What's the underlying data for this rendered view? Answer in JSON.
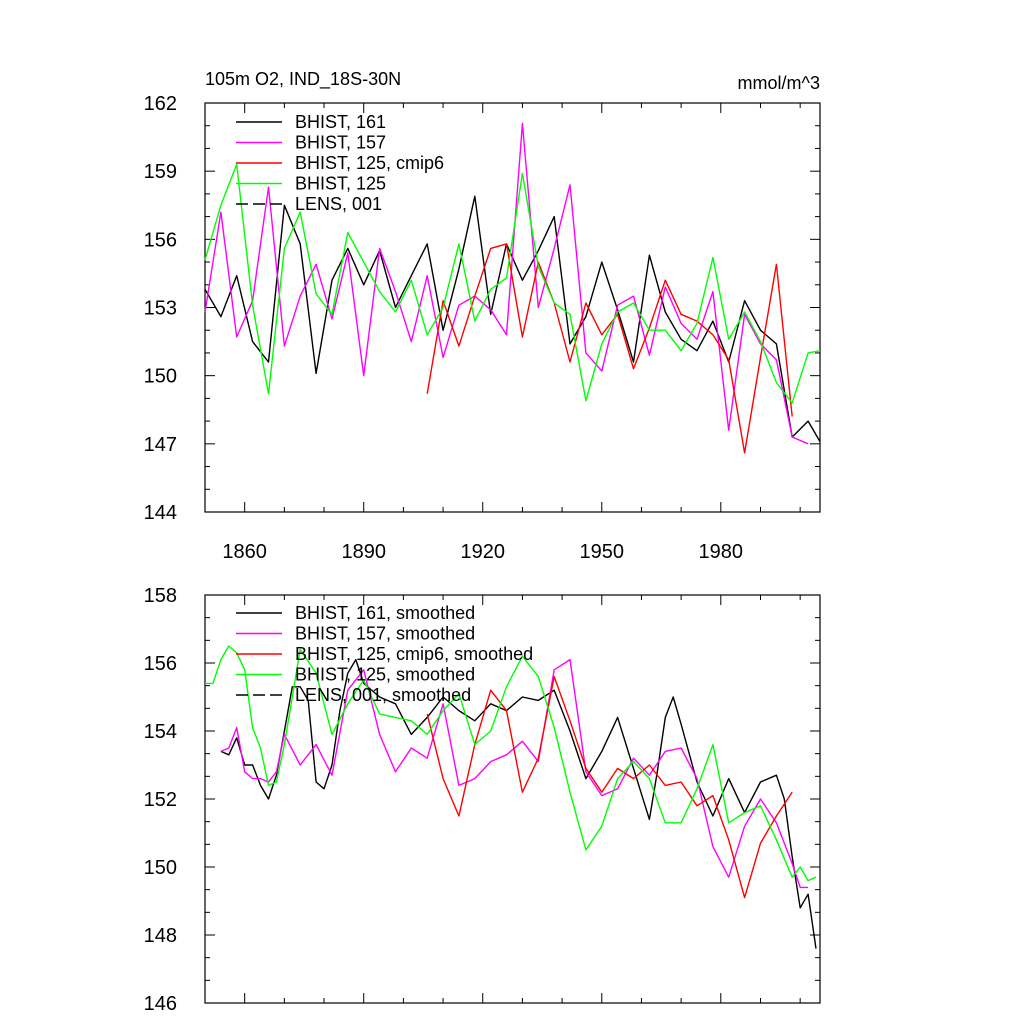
{
  "chart_data": [
    {
      "type": "line",
      "title": "105m O2, IND_18S-30N",
      "units": "mmol/m^3",
      "xlim": [
        1850,
        2005
      ],
      "ylim": [
        144,
        162
      ],
      "yticks": [
        144,
        147,
        150,
        153,
        156,
        159,
        162
      ],
      "xticks": [
        1860,
        1890,
        1920,
        1950,
        1980
      ],
      "xtick_labels": [
        "1860",
        "1890",
        "1920",
        "1950",
        "1980"
      ],
      "ytick_labels": [
        "144",
        "147",
        "150",
        "153",
        "156",
        "159",
        "162"
      ],
      "legend_position": "top-left",
      "legend": [
        {
          "name": "BHIST, 161",
          "color": "#000000",
          "dash": false
        },
        {
          "name": "BHIST, 157",
          "color": "#ff00ff",
          "dash": false
        },
        {
          "name": "BHIST, 125, cmip6",
          "color": "#ff0000",
          "dash": false
        },
        {
          "name": "BHIST, 125",
          "color": "#00ff00",
          "dash": false
        },
        {
          "name": "LENS, 001",
          "color": "#000000",
          "dash": true
        }
      ],
      "series": [
        {
          "name": "BHIST, 161",
          "color": "#000000",
          "x": [
            1850,
            1854,
            1858,
            1862,
            1866,
            1870,
            1874,
            1878,
            1882,
            1886,
            1890,
            1894,
            1898,
            1902,
            1906,
            1910,
            1914,
            1918,
            1922,
            1926,
            1930,
            1934,
            1938,
            1942,
            1946,
            1950,
            1954,
            1958,
            1962,
            1966,
            1970,
            1974,
            1978,
            1982,
            1986,
            1990,
            1994,
            1998,
            2002,
            2005
          ],
          "y": [
            153.8,
            152.6,
            154.4,
            151.5,
            150.6,
            157.5,
            155.8,
            150.1,
            154.2,
            155.6,
            154.0,
            155.5,
            153.0,
            154.4,
            155.8,
            152.0,
            154.7,
            157.9,
            152.7,
            155.8,
            154.2,
            155.5,
            157.0,
            151.4,
            152.6,
            155.0,
            152.9,
            150.6,
            155.3,
            152.8,
            151.6,
            151.1,
            152.4,
            150.6,
            153.3,
            152.0,
            151.4,
            147.3,
            148.0,
            147.1
          ]
        },
        {
          "name": "BHIST, 157",
          "color": "#ff00ff",
          "x": [
            1850,
            1854,
            1858,
            1862,
            1866,
            1870,
            1874,
            1878,
            1882,
            1886,
            1890,
            1894,
            1898,
            1902,
            1906,
            1910,
            1914,
            1918,
            1922,
            1926,
            1930,
            1934,
            1938,
            1942,
            1946,
            1950,
            1954,
            1958,
            1962,
            1966,
            1970,
            1974,
            1978,
            1982,
            1986,
            1990,
            1994,
            1998,
            2002
          ],
          "y": [
            152.8,
            157.2,
            151.7,
            153.3,
            158.3,
            151.3,
            153.5,
            154.9,
            152.5,
            155.4,
            150.0,
            155.6,
            153.7,
            151.5,
            154.4,
            150.8,
            153.1,
            153.5,
            152.9,
            151.8,
            161.1,
            153.0,
            155.6,
            158.4,
            151.0,
            150.2,
            153.1,
            153.5,
            150.9,
            153.9,
            152.3,
            151.6,
            153.7,
            147.6,
            152.7,
            151.4,
            150.7,
            147.3,
            147.0
          ]
        },
        {
          "name": "BHIST, 125, cmip6",
          "color": "#ff0000",
          "x": [
            1906,
            1910,
            1914,
            1918,
            1922,
            1926,
            1930,
            1934,
            1938,
            1942,
            1946,
            1950,
            1954,
            1958,
            1962,
            1966,
            1970,
            1974,
            1978,
            1982,
            1986,
            1990,
            1994,
            1998
          ],
          "y": [
            149.2,
            153.3,
            151.3,
            153.5,
            155.6,
            155.8,
            151.7,
            155.0,
            153.2,
            150.6,
            153.2,
            151.8,
            152.7,
            150.3,
            152.1,
            154.2,
            152.7,
            152.4,
            151.8,
            150.7,
            146.6,
            150.8,
            154.9,
            148.2
          ]
        },
        {
          "name": "BHIST, 125",
          "color": "#00ff00",
          "x": [
            1850,
            1854,
            1858,
            1862,
            1866,
            1870,
            1874,
            1878,
            1882,
            1886,
            1890,
            1894,
            1898,
            1902,
            1906,
            1910,
            1914,
            1918,
            1922,
            1926,
            1930,
            1934,
            1938,
            1942,
            1946,
            1950,
            1954,
            1958,
            1962,
            1966,
            1970,
            1974,
            1978,
            1982,
            1986,
            1990,
            1994,
            1998,
            2002,
            2005
          ],
          "y": [
            155.1,
            157.5,
            159.3,
            153.1,
            149.2,
            155.6,
            157.2,
            153.6,
            152.7,
            156.3,
            155.0,
            153.7,
            152.8,
            154.2,
            151.8,
            153.0,
            155.8,
            152.4,
            153.8,
            154.3,
            158.9,
            154.8,
            153.2,
            152.7,
            148.9,
            151.4,
            152.8,
            153.2,
            152.0,
            152.0,
            151.1,
            152.3,
            155.2,
            151.6,
            152.8,
            151.5,
            149.7,
            148.8,
            151.0,
            151.1
          ]
        }
      ]
    },
    {
      "type": "line",
      "xlim": [
        1850,
        2005
      ],
      "ylim": [
        146,
        158
      ],
      "yticks": [
        146,
        148,
        150,
        152,
        154,
        156,
        158
      ],
      "xticks": [
        1860,
        1890,
        1920,
        1950,
        1980
      ],
      "ytick_labels": [
        "146",
        "148",
        "150",
        "152",
        "154",
        "156",
        "158"
      ],
      "legend_position": "top-left",
      "legend": [
        {
          "name": "BHIST, 161, smoothed",
          "color": "#000000",
          "dash": false
        },
        {
          "name": "BHIST, 157, smoothed",
          "color": "#ff00ff",
          "dash": false
        },
        {
          "name": "BHIST, 125, cmip6, smoothed",
          "color": "#ff0000",
          "dash": false
        },
        {
          "name": "BHIST, 125, smoothed",
          "color": "#00ff00",
          "dash": false
        },
        {
          "name": "LENS, 001, smoothed",
          "color": "#000000",
          "dash": true
        }
      ],
      "series": [
        {
          "name": "BHIST, 161, smoothed",
          "color": "#000000",
          "x": [
            1854,
            1856,
            1858,
            1860,
            1862,
            1864,
            1866,
            1868,
            1870,
            1872,
            1874,
            1876,
            1878,
            1880,
            1882,
            1884,
            1886,
            1888,
            1890,
            1894,
            1898,
            1902,
            1906,
            1910,
            1914,
            1918,
            1922,
            1926,
            1930,
            1934,
            1938,
            1942,
            1946,
            1950,
            1954,
            1958,
            1962,
            1964,
            1966,
            1968,
            1970,
            1974,
            1978,
            1982,
            1986,
            1990,
            1994,
            1996,
            1998,
            2000,
            2002,
            2004
          ],
          "y": [
            153.4,
            153.3,
            153.8,
            153.0,
            153.0,
            152.4,
            152.0,
            152.7,
            154.0,
            155.3,
            155.3,
            154.9,
            152.5,
            152.3,
            153.0,
            154.6,
            155.7,
            156.1,
            155.4,
            155.0,
            154.8,
            153.9,
            154.4,
            155.0,
            154.6,
            154.3,
            154.8,
            154.6,
            155.0,
            154.9,
            155.2,
            154.0,
            152.6,
            153.4,
            154.4,
            152.9,
            151.4,
            152.8,
            154.4,
            155.0,
            154.2,
            152.5,
            151.5,
            152.6,
            151.6,
            152.5,
            152.7,
            152.0,
            150.3,
            148.8,
            149.2,
            147.6
          ]
        },
        {
          "name": "BHIST, 157, smoothed",
          "color": "#ff00ff",
          "x": [
            1854,
            1856,
            1858,
            1860,
            1862,
            1864,
            1866,
            1868,
            1870,
            1874,
            1878,
            1882,
            1886,
            1890,
            1894,
            1898,
            1902,
            1906,
            1910,
            1914,
            1918,
            1922,
            1926,
            1930,
            1934,
            1938,
            1942,
            1946,
            1950,
            1954,
            1958,
            1962,
            1966,
            1970,
            1974,
            1978,
            1982,
            1986,
            1990,
            1994,
            1998,
            2000,
            2002
          ],
          "y": [
            153.4,
            153.5,
            154.1,
            152.8,
            152.6,
            152.6,
            152.5,
            152.8,
            153.9,
            153.0,
            153.6,
            152.7,
            155.2,
            155.8,
            153.9,
            152.8,
            153.5,
            153.2,
            154.8,
            152.4,
            152.6,
            153.1,
            153.3,
            153.7,
            153.1,
            155.8,
            156.1,
            152.8,
            152.1,
            152.3,
            153.2,
            152.7,
            153.4,
            153.5,
            152.6,
            150.6,
            149.7,
            151.2,
            152.0,
            151.3,
            150.1,
            149.4,
            149.4
          ]
        },
        {
          "name": "BHIST, 125, cmip6, smoothed",
          "color": "#ff0000",
          "x": [
            1906,
            1910,
            1914,
            1918,
            1922,
            1926,
            1930,
            1934,
            1938,
            1942,
            1946,
            1950,
            1954,
            1958,
            1962,
            1966,
            1970,
            1974,
            1978,
            1982,
            1986,
            1990,
            1994,
            1998
          ],
          "y": [
            154.5,
            152.6,
            151.5,
            153.6,
            155.2,
            154.6,
            152.2,
            153.2,
            155.6,
            154.3,
            152.9,
            152.2,
            152.9,
            152.6,
            153.0,
            152.4,
            152.5,
            151.8,
            152.1,
            150.8,
            149.1,
            150.7,
            151.5,
            152.2
          ]
        },
        {
          "name": "BHIST, 125, smoothed",
          "color": "#00ff00",
          "x": [
            1850,
            1852,
            1854,
            1856,
            1858,
            1860,
            1862,
            1864,
            1866,
            1868,
            1870,
            1874,
            1878,
            1882,
            1886,
            1890,
            1894,
            1898,
            1902,
            1906,
            1910,
            1914,
            1918,
            1922,
            1926,
            1930,
            1934,
            1938,
            1942,
            1946,
            1950,
            1954,
            1958,
            1962,
            1966,
            1970,
            1974,
            1978,
            1982,
            1986,
            1990,
            1994,
            1998,
            2000,
            2002,
            2004
          ],
          "y": [
            155.4,
            155.4,
            156.1,
            156.5,
            156.3,
            155.8,
            154.1,
            153.5,
            152.4,
            152.5,
            153.6,
            156.4,
            155.7,
            153.9,
            154.8,
            155.5,
            154.5,
            154.4,
            154.3,
            153.9,
            154.6,
            155.1,
            153.6,
            154.0,
            155.3,
            156.2,
            155.6,
            154.1,
            152.2,
            150.5,
            151.2,
            152.6,
            153.1,
            152.6,
            151.3,
            151.3,
            152.3,
            153.6,
            151.3,
            151.6,
            151.8,
            150.8,
            149.7,
            150.0,
            149.6,
            149.7
          ]
        }
      ]
    }
  ]
}
